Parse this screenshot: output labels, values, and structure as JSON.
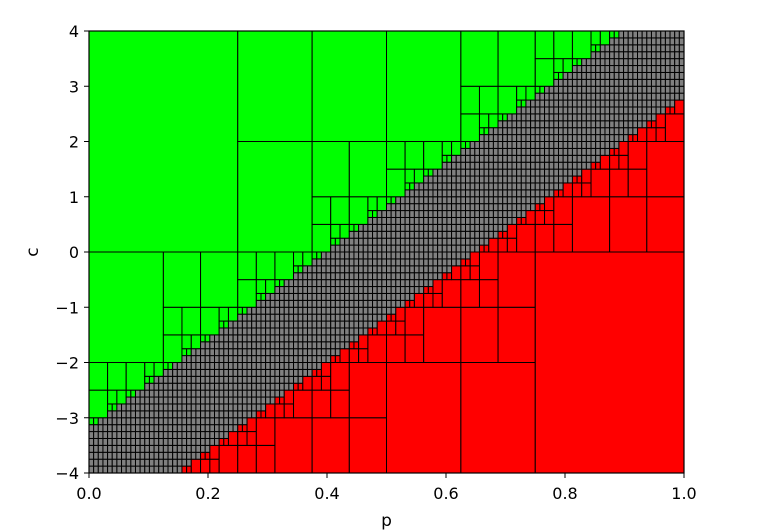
{
  "chart_data": {
    "type": "heatmap",
    "title": "",
    "xlabel": "p",
    "ylabel": "c",
    "xlim": [
      0.0,
      1.0
    ],
    "ylim": [
      -4,
      4
    ],
    "x_ticks": [
      "0.0",
      "0.2",
      "0.4",
      "0.6",
      "0.8",
      "1.0"
    ],
    "x_tick_values": [
      0.0,
      0.2,
      0.4,
      0.6,
      0.8,
      1.0
    ],
    "y_ticks": [
      "−4",
      "−3",
      "−2",
      "−1",
      "0",
      "1",
      "2",
      "3",
      "4"
    ],
    "y_tick_values": [
      -4,
      -3,
      -2,
      -1,
      0,
      1,
      2,
      3,
      4
    ],
    "grid": false,
    "colors": {
      "green": "#00ff00",
      "gray": "#808080",
      "red": "#ff0000",
      "edge": "#000000"
    },
    "description": "Adaptive quadtree subdivision of the (p, c) domain; each cell classified green (c above region), gray (boundary, refined), red (c below region).",
    "boundary_band": "gray cells form a diagonal band from (0.0,-4) to (1.0,4)"
  }
}
